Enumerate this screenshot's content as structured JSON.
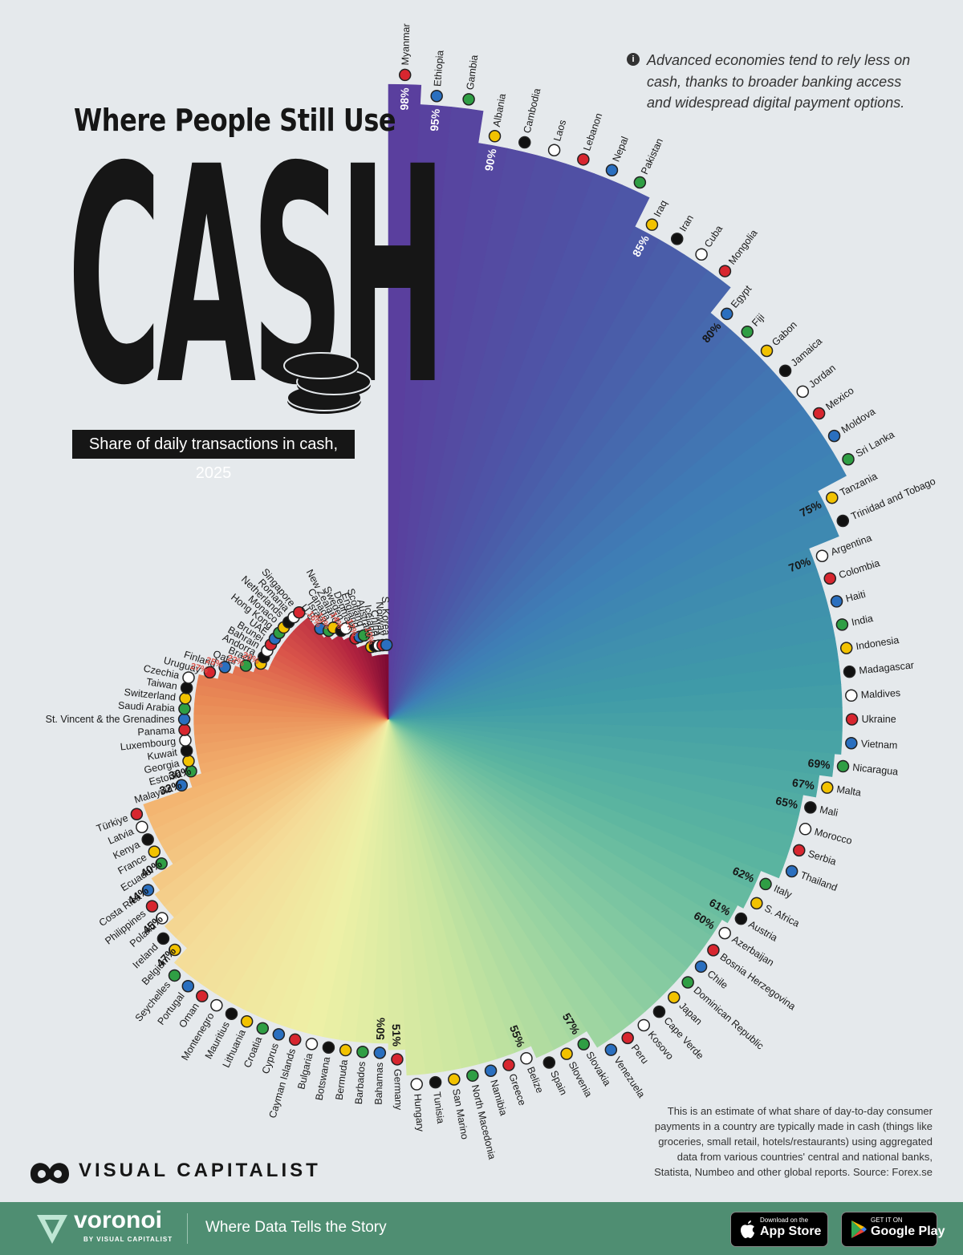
{
  "header": {
    "title_line1": "Where People Still Use",
    "title_big": "CASH",
    "subtitle": "Share of daily transactions in cash, 2025",
    "note": "Advanced economies tend to rely less on cash, thanks to broader banking access and widespread digital payment options.",
    "methodology": "This is an estimate of what share of day-to-day consumer payments in a country are typically made in cash (things like groceries, small retail, hotels/restaurants) using aggregated data from various countries' central and national banks, Statista, Numbeo and other global reports. Source: Forex.se"
  },
  "brand": {
    "publisher": "VISUAL CAPITALIST",
    "platform": "voronoi",
    "platform_by": "BY VISUAL CAPITALIST",
    "tagline": "Where Data Tells the Story",
    "appstore_small": "Download on the",
    "appstore_big": "App Store",
    "googleplay_small": "GET IT ON",
    "googleplay_big": "Google Play"
  },
  "chart_data": {
    "type": "radial-bar",
    "title": "Where People Still Use CASH",
    "subtitle": "Share of daily transactions in cash, 2025",
    "value_unit": "%",
    "series": [
      {
        "country": "Myanmar",
        "value": 98,
        "show_label": true
      },
      {
        "country": "Ethiopia",
        "value": 95,
        "show_label": true
      },
      {
        "country": "Gambia",
        "value": 95,
        "show_label": false
      },
      {
        "country": "Albania",
        "value": 90,
        "show_label": true
      },
      {
        "country": "Cambodia",
        "value": 90,
        "show_label": false
      },
      {
        "country": "Laos",
        "value": 90,
        "show_label": false
      },
      {
        "country": "Lebanon",
        "value": 90,
        "show_label": false
      },
      {
        "country": "Nepal",
        "value": 90,
        "show_label": false
      },
      {
        "country": "Pakistan",
        "value": 90,
        "show_label": false
      },
      {
        "country": "Iraq",
        "value": 85,
        "show_label": true
      },
      {
        "country": "Iran",
        "value": 85,
        "show_label": false
      },
      {
        "country": "Cuba",
        "value": 85,
        "show_label": false
      },
      {
        "country": "Mongolia",
        "value": 85,
        "show_label": false
      },
      {
        "country": "Egypt",
        "value": 80,
        "show_label": true
      },
      {
        "country": "Fiji",
        "value": 80,
        "show_label": false
      },
      {
        "country": "Gabon",
        "value": 80,
        "show_label": false
      },
      {
        "country": "Jamaica",
        "value": 80,
        "show_label": false
      },
      {
        "country": "Jordan",
        "value": 80,
        "show_label": false
      },
      {
        "country": "Mexico",
        "value": 80,
        "show_label": false
      },
      {
        "country": "Moldova",
        "value": 80,
        "show_label": false
      },
      {
        "country": "Sri Lanka",
        "value": 80,
        "show_label": false
      },
      {
        "country": "Tanzania",
        "value": 75,
        "show_label": true
      },
      {
        "country": "Trinidad and Tobago",
        "value": 75,
        "show_label": false
      },
      {
        "country": "Argentina",
        "value": 70,
        "show_label": true
      },
      {
        "country": "Colombia",
        "value": 70,
        "show_label": false
      },
      {
        "country": "Haiti",
        "value": 70,
        "show_label": false
      },
      {
        "country": "India",
        "value": 70,
        "show_label": false
      },
      {
        "country": "Indonesia",
        "value": 70,
        "show_label": false
      },
      {
        "country": "Madagascar",
        "value": 70,
        "show_label": false
      },
      {
        "country": "Maldives",
        "value": 70,
        "show_label": false
      },
      {
        "country": "Ukraine",
        "value": 70,
        "show_label": false
      },
      {
        "country": "Vietnam",
        "value": 70,
        "show_label": false
      },
      {
        "country": "Nicaragua",
        "value": 69,
        "show_label": true
      },
      {
        "country": "Malta",
        "value": 67,
        "show_label": true
      },
      {
        "country": "Mali",
        "value": 65,
        "show_label": true
      },
      {
        "country": "Morocco",
        "value": 65,
        "show_label": false
      },
      {
        "country": "Serbia",
        "value": 65,
        "show_label": false
      },
      {
        "country": "Thailand",
        "value": 65,
        "show_label": false
      },
      {
        "country": "Italy",
        "value": 62,
        "show_label": true
      },
      {
        "country": "S. Africa",
        "value": 62,
        "show_label": false
      },
      {
        "country": "Austria",
        "value": 61,
        "show_label": true
      },
      {
        "country": "Azerbaijan",
        "value": 60,
        "show_label": true
      },
      {
        "country": "Bosnia Herzegovina",
        "value": 60,
        "show_label": false
      },
      {
        "country": "Chile",
        "value": 60,
        "show_label": false
      },
      {
        "country": "Dominican Republic",
        "value": 60,
        "show_label": false
      },
      {
        "country": "Japan",
        "value": 60,
        "show_label": false
      },
      {
        "country": "Cape Verde",
        "value": 60,
        "show_label": false
      },
      {
        "country": "Kosovo",
        "value": 60,
        "show_label": false
      },
      {
        "country": "Peru",
        "value": 60,
        "show_label": false
      },
      {
        "country": "Venezuela",
        "value": 60,
        "show_label": false
      },
      {
        "country": "Slovakia",
        "value": 57,
        "show_label": true
      },
      {
        "country": "Slovenia",
        "value": 57,
        "show_label": false
      },
      {
        "country": "Spain",
        "value": 57,
        "show_label": false
      },
      {
        "country": "Belize",
        "value": 55,
        "show_label": true
      },
      {
        "country": "Greece",
        "value": 55,
        "show_label": false
      },
      {
        "country": "Namibia",
        "value": 55,
        "show_label": false
      },
      {
        "country": "North Macedonia",
        "value": 55,
        "show_label": false
      },
      {
        "country": "San Marino",
        "value": 55,
        "show_label": false
      },
      {
        "country": "Tunisia",
        "value": 55,
        "show_label": false
      },
      {
        "country": "Hungary",
        "value": 55,
        "show_label": false
      },
      {
        "country": "Germany",
        "value": 51,
        "show_label": true
      },
      {
        "country": "Bahamas",
        "value": 50,
        "show_label": true
      },
      {
        "country": "Barbados",
        "value": 50,
        "show_label": false
      },
      {
        "country": "Bermuda",
        "value": 50,
        "show_label": false
      },
      {
        "country": "Botswana",
        "value": 50,
        "show_label": false
      },
      {
        "country": "Bulgaria",
        "value": 50,
        "show_label": false
      },
      {
        "country": "Cayman Islands",
        "value": 50,
        "show_label": false
      },
      {
        "country": "Cyprus",
        "value": 50,
        "show_label": false
      },
      {
        "country": "Croatia",
        "value": 50,
        "show_label": false
      },
      {
        "country": "Lithuania",
        "value": 50,
        "show_label": false
      },
      {
        "country": "Mauritius",
        "value": 50,
        "show_label": false
      },
      {
        "country": "Montenegro",
        "value": 50,
        "show_label": false
      },
      {
        "country": "Oman",
        "value": 50,
        "show_label": false
      },
      {
        "country": "Portugal",
        "value": 50,
        "show_label": false
      },
      {
        "country": "Seychelles",
        "value": 50,
        "show_label": false
      },
      {
        "country": "Belgium",
        "value": 47,
        "show_label": true
      },
      {
        "country": "Ireland",
        "value": 47,
        "show_label": false
      },
      {
        "country": "Poland",
        "value": 45,
        "show_label": true
      },
      {
        "country": "Philippines",
        "value": 45,
        "show_label": false
      },
      {
        "country": "Costa Rica",
        "value": 44,
        "show_label": true
      },
      {
        "country": "Ecuador",
        "value": 40,
        "show_label": true
      },
      {
        "country": "France",
        "value": 40,
        "show_label": false
      },
      {
        "country": "Kenya",
        "value": 40,
        "show_label": false
      },
      {
        "country": "Latvia",
        "value": 40,
        "show_label": false
      },
      {
        "country": "Türkiye",
        "value": 40,
        "show_label": false
      },
      {
        "country": "Malaysia",
        "value": 32,
        "show_label": true
      },
      {
        "country": "Estonia",
        "value": 30,
        "show_label": true
      },
      {
        "country": "Georgia",
        "value": 30,
        "show_label": false
      },
      {
        "country": "Kuwait",
        "value": 30,
        "show_label": false
      },
      {
        "country": "Luxembourg",
        "value": 30,
        "show_label": false
      },
      {
        "country": "Panama",
        "value": 30,
        "show_label": false
      },
      {
        "country": "St. Vincent & the Grenadines",
        "value": 30,
        "show_label": false
      },
      {
        "country": "Saudi Arabia",
        "value": 30,
        "show_label": false
      },
      {
        "country": "Switzerland",
        "value": 30,
        "show_label": false
      },
      {
        "country": "Taiwan",
        "value": 30,
        "show_label": false
      },
      {
        "country": "Czechia",
        "value": 30,
        "show_label": false
      },
      {
        "country": "Uruguay",
        "value": 27,
        "show_label": true
      },
      {
        "country": "Finland",
        "value": 25,
        "show_label": true
      },
      {
        "country": "Qatar",
        "value": 22,
        "show_label": true
      },
      {
        "country": "Brazil",
        "value": 20,
        "show_label": true
      },
      {
        "country": "Andorra",
        "value": 20,
        "show_label": false
      },
      {
        "country": "Bahrain",
        "value": 20,
        "show_label": false
      },
      {
        "country": "Brunei",
        "value": 20,
        "show_label": false
      },
      {
        "country": "UAE",
        "value": 20,
        "show_label": false
      },
      {
        "country": "Hong Kong",
        "value": 20,
        "show_label": false
      },
      {
        "country": "Monaco",
        "value": 20,
        "show_label": false
      },
      {
        "country": "Netherlands",
        "value": 20,
        "show_label": false
      },
      {
        "country": "Romania",
        "value": 20,
        "show_label": false
      },
      {
        "country": "Singapore",
        "value": 20,
        "show_label": false
      },
      {
        "country": "U.S.",
        "value": 16,
        "show_label": true
      },
      {
        "country": "Israel",
        "value": 15,
        "show_label": true
      },
      {
        "country": "Canada",
        "value": 15,
        "show_label": false
      },
      {
        "country": "New Zealand",
        "value": 14,
        "show_label": true
      },
      {
        "country": "Sweden",
        "value": 14,
        "show_label": false
      },
      {
        "country": "Denmark",
        "value": 12,
        "show_label": true
      },
      {
        "country": "England",
        "value": 12,
        "show_label": false
      },
      {
        "country": "Scotland",
        "value": 12,
        "show_label": false
      },
      {
        "country": "Australia",
        "value": 10,
        "show_label": true
      },
      {
        "country": "Iceland",
        "value": 10,
        "show_label": false
      },
      {
        "country": "China",
        "value": 10,
        "show_label": false
      },
      {
        "country": "Norway",
        "value": 10,
        "show_label": false
      },
      {
        "country": "S. Korea",
        "value": 10,
        "show_label": false
      }
    ],
    "color_scale": [
      "#5a3f9e",
      "#4b5aa8",
      "#3e7fb6",
      "#3f9aa8",
      "#5bb5a0",
      "#8fcfa1",
      "#c9e6a0",
      "#eef0a6",
      "#f4dc98",
      "#f3b672",
      "#e98a56",
      "#d9534a",
      "#b3243f",
      "#7e0b35"
    ]
  }
}
